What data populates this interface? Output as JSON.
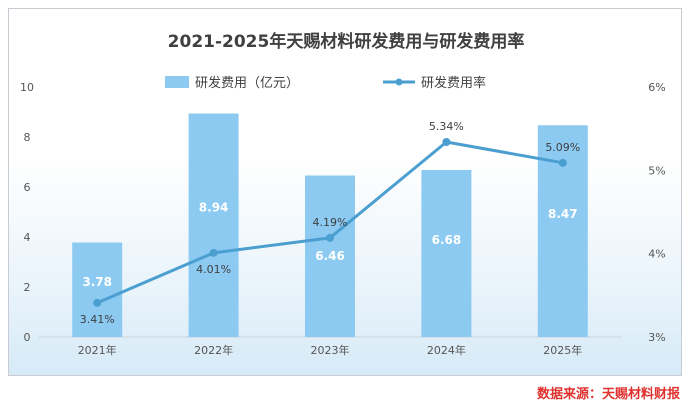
{
  "chart_data": {
    "type": "bar",
    "title": "2021-2025年天赐材料研发费用与研发费用率",
    "categories": [
      "2021年",
      "2022年",
      "2023年",
      "2024年",
      "2025年"
    ],
    "series": [
      {
        "name": "研发费用（亿元）",
        "type": "bar",
        "axis": "left",
        "values": [
          3.78,
          8.94,
          6.46,
          6.68,
          8.47
        ],
        "labels": [
          "3.78",
          "8.94",
          "6.46",
          "6.68",
          "8.47"
        ]
      },
      {
        "name": "研发费用率",
        "type": "line",
        "axis": "right",
        "values": [
          3.41,
          4.01,
          4.19,
          5.34,
          5.09
        ],
        "labels": [
          "3.41%",
          "4.01%",
          "4.19%",
          "5.34%",
          "5.09%"
        ]
      }
    ],
    "y_left": {
      "min": 0,
      "max": 10,
      "ticks": [
        "0",
        "2",
        "4",
        "6",
        "8",
        "10"
      ]
    },
    "y_right": {
      "min": 3,
      "max": 6,
      "ticks": [
        "3%",
        "4%",
        "5%",
        "6%"
      ]
    },
    "legend_position": "top-center",
    "grid": false,
    "colors": {
      "bar": "#8ccaf2",
      "line": "#4a9fd0",
      "title": "#404040"
    }
  },
  "source_text": "数据来源：天赐材料财报"
}
